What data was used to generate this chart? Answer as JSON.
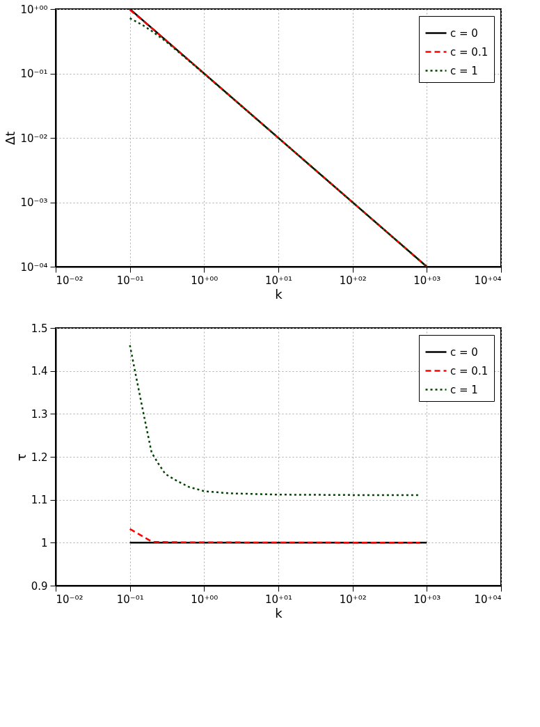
{
  "chart_data": [
    {
      "type": "line",
      "xlabel": "k",
      "ylabel": "Δt",
      "log": "xy",
      "grid": true,
      "legend": "top right",
      "xlim": [
        0.01,
        10000
      ],
      "ylim": [
        0.0001,
        1
      ],
      "xticks": [
        {
          "value": 0.01,
          "label": "10⁻⁰²"
        },
        {
          "value": 0.1,
          "label": "10⁻⁰¹"
        },
        {
          "value": 1,
          "label": "10⁺⁰⁰"
        },
        {
          "value": 10,
          "label": "10⁺⁰¹"
        },
        {
          "value": 100,
          "label": "10⁺⁰²"
        },
        {
          "value": 1000,
          "label": "10⁺⁰³"
        },
        {
          "value": 10000,
          "label": "10⁺⁰⁴"
        }
      ],
      "yticks": [
        {
          "value": 0.0001,
          "label": "10⁻⁰⁴"
        },
        {
          "value": 0.001,
          "label": "10⁻⁰³"
        },
        {
          "value": 0.01,
          "label": "10⁻⁰²"
        },
        {
          "value": 0.1,
          "label": "10⁻⁰¹"
        },
        {
          "value": 1,
          "label": "10⁺⁰⁰"
        }
      ],
      "series": [
        {
          "name": "c = 0",
          "color": "#000000",
          "line_style": "solid",
          "x": [
            0.1,
            1000
          ],
          "values": [
            1,
            0.0001
          ]
        },
        {
          "name": "c = 0.1",
          "color": "#ff0000",
          "line_style": "dashed",
          "x": [
            0.1,
            0.2,
            1,
            10,
            100,
            1000
          ],
          "values": [
            0.97,
            0.5,
            0.1,
            0.01,
            0.001,
            0.0001
          ]
        },
        {
          "name": "c = 1",
          "color": "#004400",
          "line_style": "dotted",
          "x": [
            0.1,
            0.15,
            0.2,
            0.3,
            0.5,
            1,
            10,
            100,
            1000
          ],
          "values": [
            0.72,
            0.56,
            0.45,
            0.32,
            0.195,
            0.099,
            0.01,
            0.001,
            0.0001
          ]
        }
      ]
    },
    {
      "type": "line",
      "xlabel": "k",
      "ylabel": "τ",
      "log": "x",
      "grid": true,
      "legend": "top right",
      "xlim": [
        0.01,
        10000
      ],
      "ylim": [
        0.9,
        1.5
      ],
      "xticks": [
        {
          "value": 0.01,
          "label": "10⁻⁰²"
        },
        {
          "value": 0.1,
          "label": "10⁻⁰¹"
        },
        {
          "value": 1,
          "label": "10⁺⁰⁰"
        },
        {
          "value": 10,
          "label": "10⁺⁰¹"
        },
        {
          "value": 100,
          "label": "10⁺⁰²"
        },
        {
          "value": 1000,
          "label": "10⁺⁰³"
        },
        {
          "value": 10000,
          "label": "10⁺⁰⁴"
        }
      ],
      "yticks": [
        0.9,
        1,
        1.1,
        1.2,
        1.3,
        1.4,
        1.5
      ],
      "series": [
        {
          "name": "c = 0",
          "color": "#000000",
          "line_style": "solid",
          "x": [
            0.1,
            1000
          ],
          "values": [
            1,
            1
          ]
        },
        {
          "name": "c = 0.1",
          "color": "#ff0000",
          "line_style": "dashed",
          "x": [
            0.1,
            0.2,
            0.5,
            800
          ],
          "values": [
            1.032,
            1.002,
            1.001,
            1.0
          ]
        },
        {
          "name": "c = 1",
          "color": "#004400",
          "line_style": "dotted",
          "x": [
            0.1,
            0.117,
            0.155,
            0.196,
            0.24,
            0.3,
            0.42,
            0.62,
            1,
            2.2,
            10,
            100,
            800
          ],
          "values": [
            1.46,
            1.4,
            1.295,
            1.21,
            1.185,
            1.16,
            1.145,
            1.13,
            1.12,
            1.115,
            1.112,
            1.111,
            1.111
          ]
        }
      ]
    }
  ]
}
